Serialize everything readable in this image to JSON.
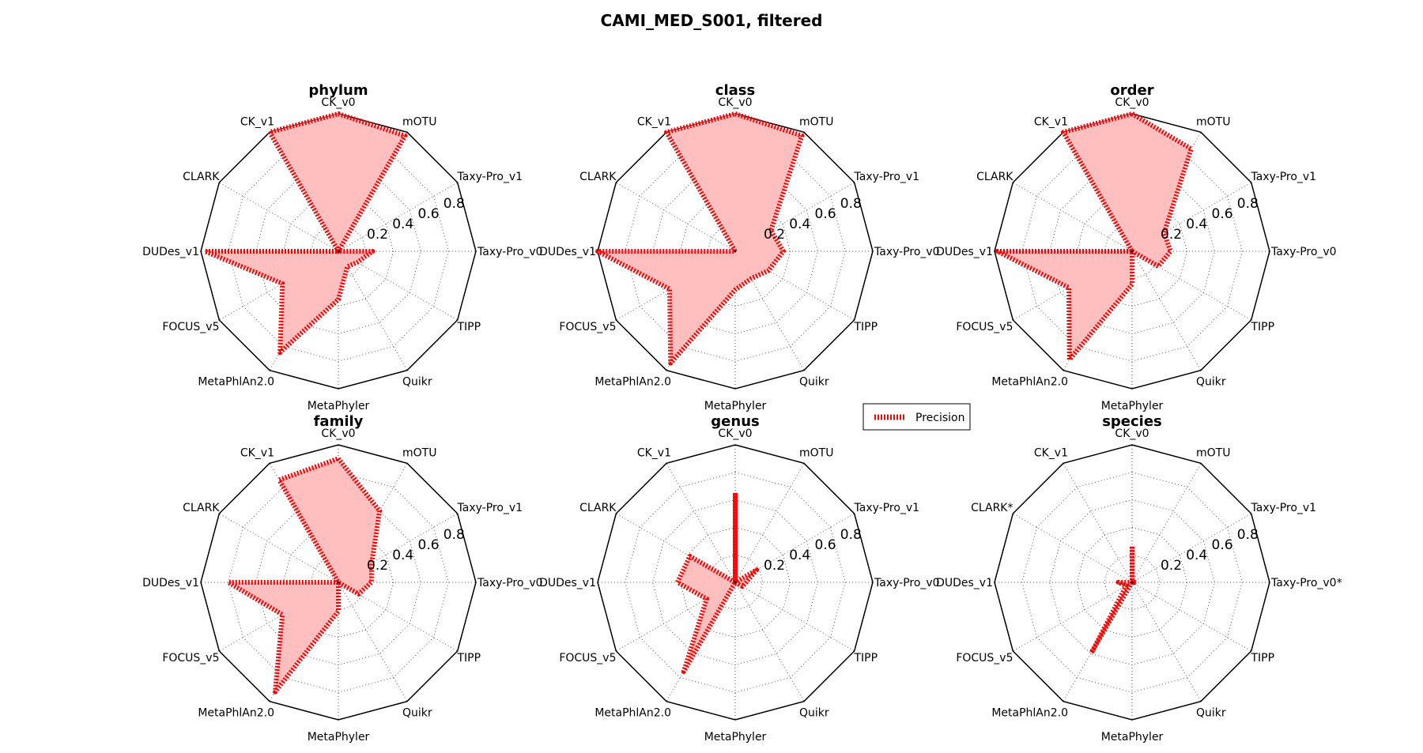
{
  "figure": {
    "title": "CAMI_MED_S001, filtered"
  },
  "legend": {
    "label": "Precision",
    "placement": "right of top-row middle"
  },
  "chart_data": {
    "type": "radar",
    "title": "CAMI_MED_S001, filtered",
    "categories": [
      "CK_v0",
      "mOTU",
      "Taxy-Pro_v1",
      "Taxy-Pro_v0",
      "TIPP",
      "Quikr",
      "MetaPhyler",
      "MetaPhlAn2.0",
      "FOCUS_v5",
      "DUDes_v1",
      "CLARK",
      "CK_v1"
    ],
    "r_ticks": [
      "0.2",
      "0.4",
      "0.6",
      "0.8"
    ],
    "rlim": [
      0,
      1
    ],
    "grid": true,
    "line_style": "dotted",
    "colors": {
      "series": "#ff0000",
      "fill": "#ffbfbf",
      "highlight": "#ff0000"
    },
    "panels": [
      {
        "title": "phylum",
        "series": [
          {
            "name": "Precision",
            "values": [
              1.0,
              0.97,
              0.0,
              0.25,
              0.16,
              0.13,
              0.35,
              0.85,
              0.47,
              0.97,
              0.0,
              1.0
            ]
          }
        ],
        "highlight": []
      },
      {
        "title": "class",
        "series": [
          {
            "name": "Precision",
            "values": [
              1.0,
              0.97,
              0.3,
              0.35,
              0.28,
              0.23,
              0.28,
              0.94,
              0.55,
              1.0,
              0.0,
              1.0
            ]
          }
        ],
        "highlight": []
      },
      {
        "title": "order",
        "series": [
          {
            "name": "Precision",
            "values": [
              1.0,
              0.86,
              0.27,
              0.28,
              0.22,
              0.0,
              0.24,
              0.91,
              0.53,
              0.98,
              0.0,
              1.0
            ]
          }
        ],
        "highlight": []
      },
      {
        "title": "family",
        "series": [
          {
            "name": "Precision",
            "values": [
              0.9,
              0.6,
              0.28,
              0.24,
              0.17,
              0.0,
              0.21,
              0.92,
              0.47,
              0.8,
              0.0,
              0.86
            ]
          }
        ],
        "highlight": []
      },
      {
        "title": "genus",
        "series": [
          {
            "name": "Precision",
            "values": [
              0.65,
              0.0,
              0.18,
              0.08,
              0.06,
              0.0,
              0.0,
              0.75,
              0.24,
              0.42,
              0.38,
              0.0
            ]
          }
        ],
        "highlight": []
      },
      {
        "title": "species",
        "series": [
          {
            "name": "Precision",
            "values": [
              0.26,
              0.0,
              0.0,
              0.03,
              0.0,
              0.0,
              0.0,
              0.59,
              0.05,
              0.1,
              0.0,
              0.0
            ]
          }
        ],
        "highlight": [
          "CLARK",
          "Taxy-Pro_v0"
        ],
        "category_labels": [
          "CK_v0",
          "mOTU",
          "Taxy-Pro_v1",
          "Taxy-Pro_v0*",
          "TIPP",
          "Quikr",
          "MetaPhyler",
          "MetaPhlAn2.0",
          "FOCUS_v5",
          "DUDes_v1",
          "CLARK*",
          "CK_v1"
        ]
      }
    ]
  }
}
